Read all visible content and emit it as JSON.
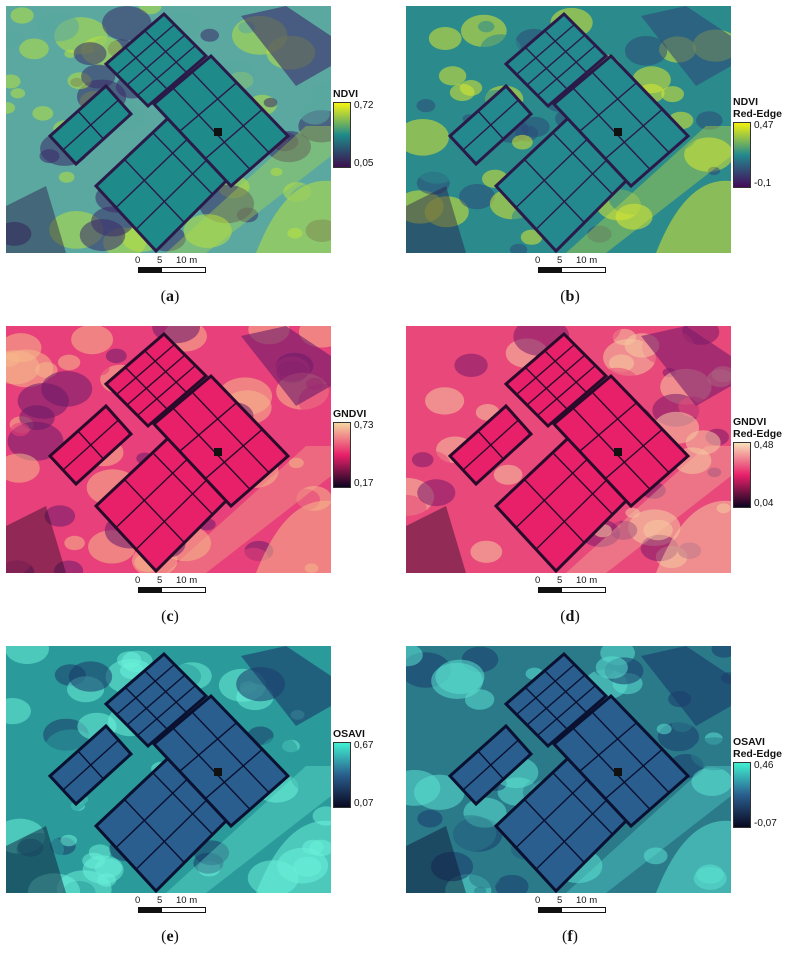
{
  "panels": [
    {
      "id": "a",
      "caption_label": "a",
      "title_line1": "NDVI",
      "title_line2": "",
      "max": "0,72",
      "min": "0,05",
      "colors": {
        "low": "#3b0f4f",
        "mid": "#1f8a8a",
        "high": "#f6f314",
        "ground": "#5aa8a0",
        "hi": "#b8e040",
        "lo": "#3a2a6a",
        "dark": "#2a1a4a"
      }
    },
    {
      "id": "b",
      "caption_label": "b",
      "title_line1": "NDVI",
      "title_line2": "Red-Edge",
      "max": "0,47",
      "min": "-0,1",
      "colors": {
        "low": "#440a5a",
        "mid": "#23898e",
        "high": "#f2f10e",
        "ground": "#2a8a8c",
        "hi": "#d8e830",
        "lo": "#2e4a7a",
        "dark": "#2a1a4a"
      }
    },
    {
      "id": "c",
      "caption_label": "c",
      "title_line1": "GNDVI",
      "title_line2": "",
      "max": "0,73",
      "min": "0,17",
      "colors": {
        "low": "#0d0520",
        "mid": "#e8206a",
        "high": "#f6d7a0",
        "ground": "#e8407a",
        "hi": "#f5b88a",
        "lo": "#6a1a6a",
        "dark": "#2a0a2a"
      }
    },
    {
      "id": "d",
      "caption_label": "d",
      "title_line1": "GNDVI",
      "title_line2": "Red-Edge",
      "max": "0,48",
      "min": "0,04",
      "colors": {
        "low": "#0d0520",
        "mid": "#e8206a",
        "high": "#f8e2b8",
        "ground": "#e8487a",
        "hi": "#f6c8a0",
        "lo": "#7a1a6a",
        "dark": "#2a0a2a"
      }
    },
    {
      "id": "e",
      "caption_label": "e",
      "title_line1": "OSAVI",
      "title_line2": "",
      "max": "0,67",
      "min": "0,07",
      "colors": {
        "low": "#0a0820",
        "mid": "#2a5e8e",
        "high": "#40f0d0",
        "ground": "#2a9a9a",
        "hi": "#6af0d8",
        "lo": "#1a3a6a",
        "dark": "#0a1030"
      }
    },
    {
      "id": "f",
      "caption_label": "f",
      "title_line1": "OSAVI",
      "title_line2": "Red-Edge",
      "max": "0,46",
      "min": "-0,07",
      "colors": {
        "low": "#0a0820",
        "mid": "#2a5e8e",
        "high": "#40f0d0",
        "ground": "#2a7a8a",
        "hi": "#5ae0d0",
        "lo": "#1a3a6a",
        "dark": "#0a1030"
      }
    }
  ],
  "scalebar": {
    "l0": "0",
    "l1": "5",
    "l2": "10 m"
  }
}
